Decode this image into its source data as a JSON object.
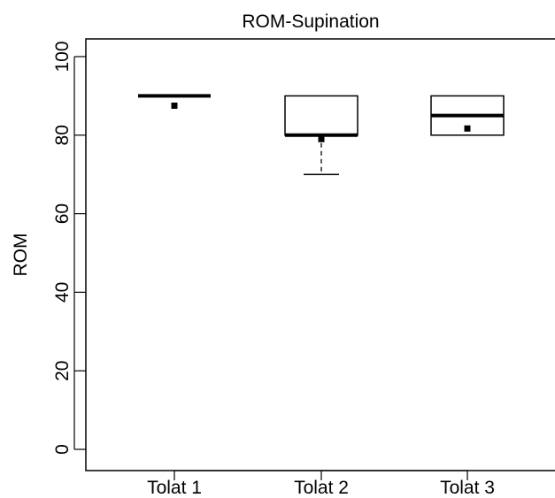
{
  "chart_data": {
    "type": "box",
    "title": "ROM-Supination",
    "xlabel": "",
    "ylabel": "ROM",
    "ylim": [
      0,
      100
    ],
    "yticks": [
      0,
      20,
      40,
      60,
      80,
      100
    ],
    "categories": [
      "Tolat 1",
      "Tolat 2",
      "Tolat 3"
    ],
    "boxes": [
      {
        "name": "Tolat 1",
        "whisker_low": 90,
        "q1": 90,
        "median": 90,
        "q3": 90,
        "whisker_high": 90,
        "mean": 87.5
      },
      {
        "name": "Tolat 2",
        "whisker_low": 70,
        "q1": 80,
        "median": 80,
        "q3": 90,
        "whisker_high": 90,
        "mean": 79
      },
      {
        "name": "Tolat 3",
        "whisker_low": 80,
        "q1": 80,
        "median": 85,
        "q3": 90,
        "whisker_high": 90,
        "mean": 81.7
      }
    ],
    "grid": false,
    "legend": "none"
  }
}
